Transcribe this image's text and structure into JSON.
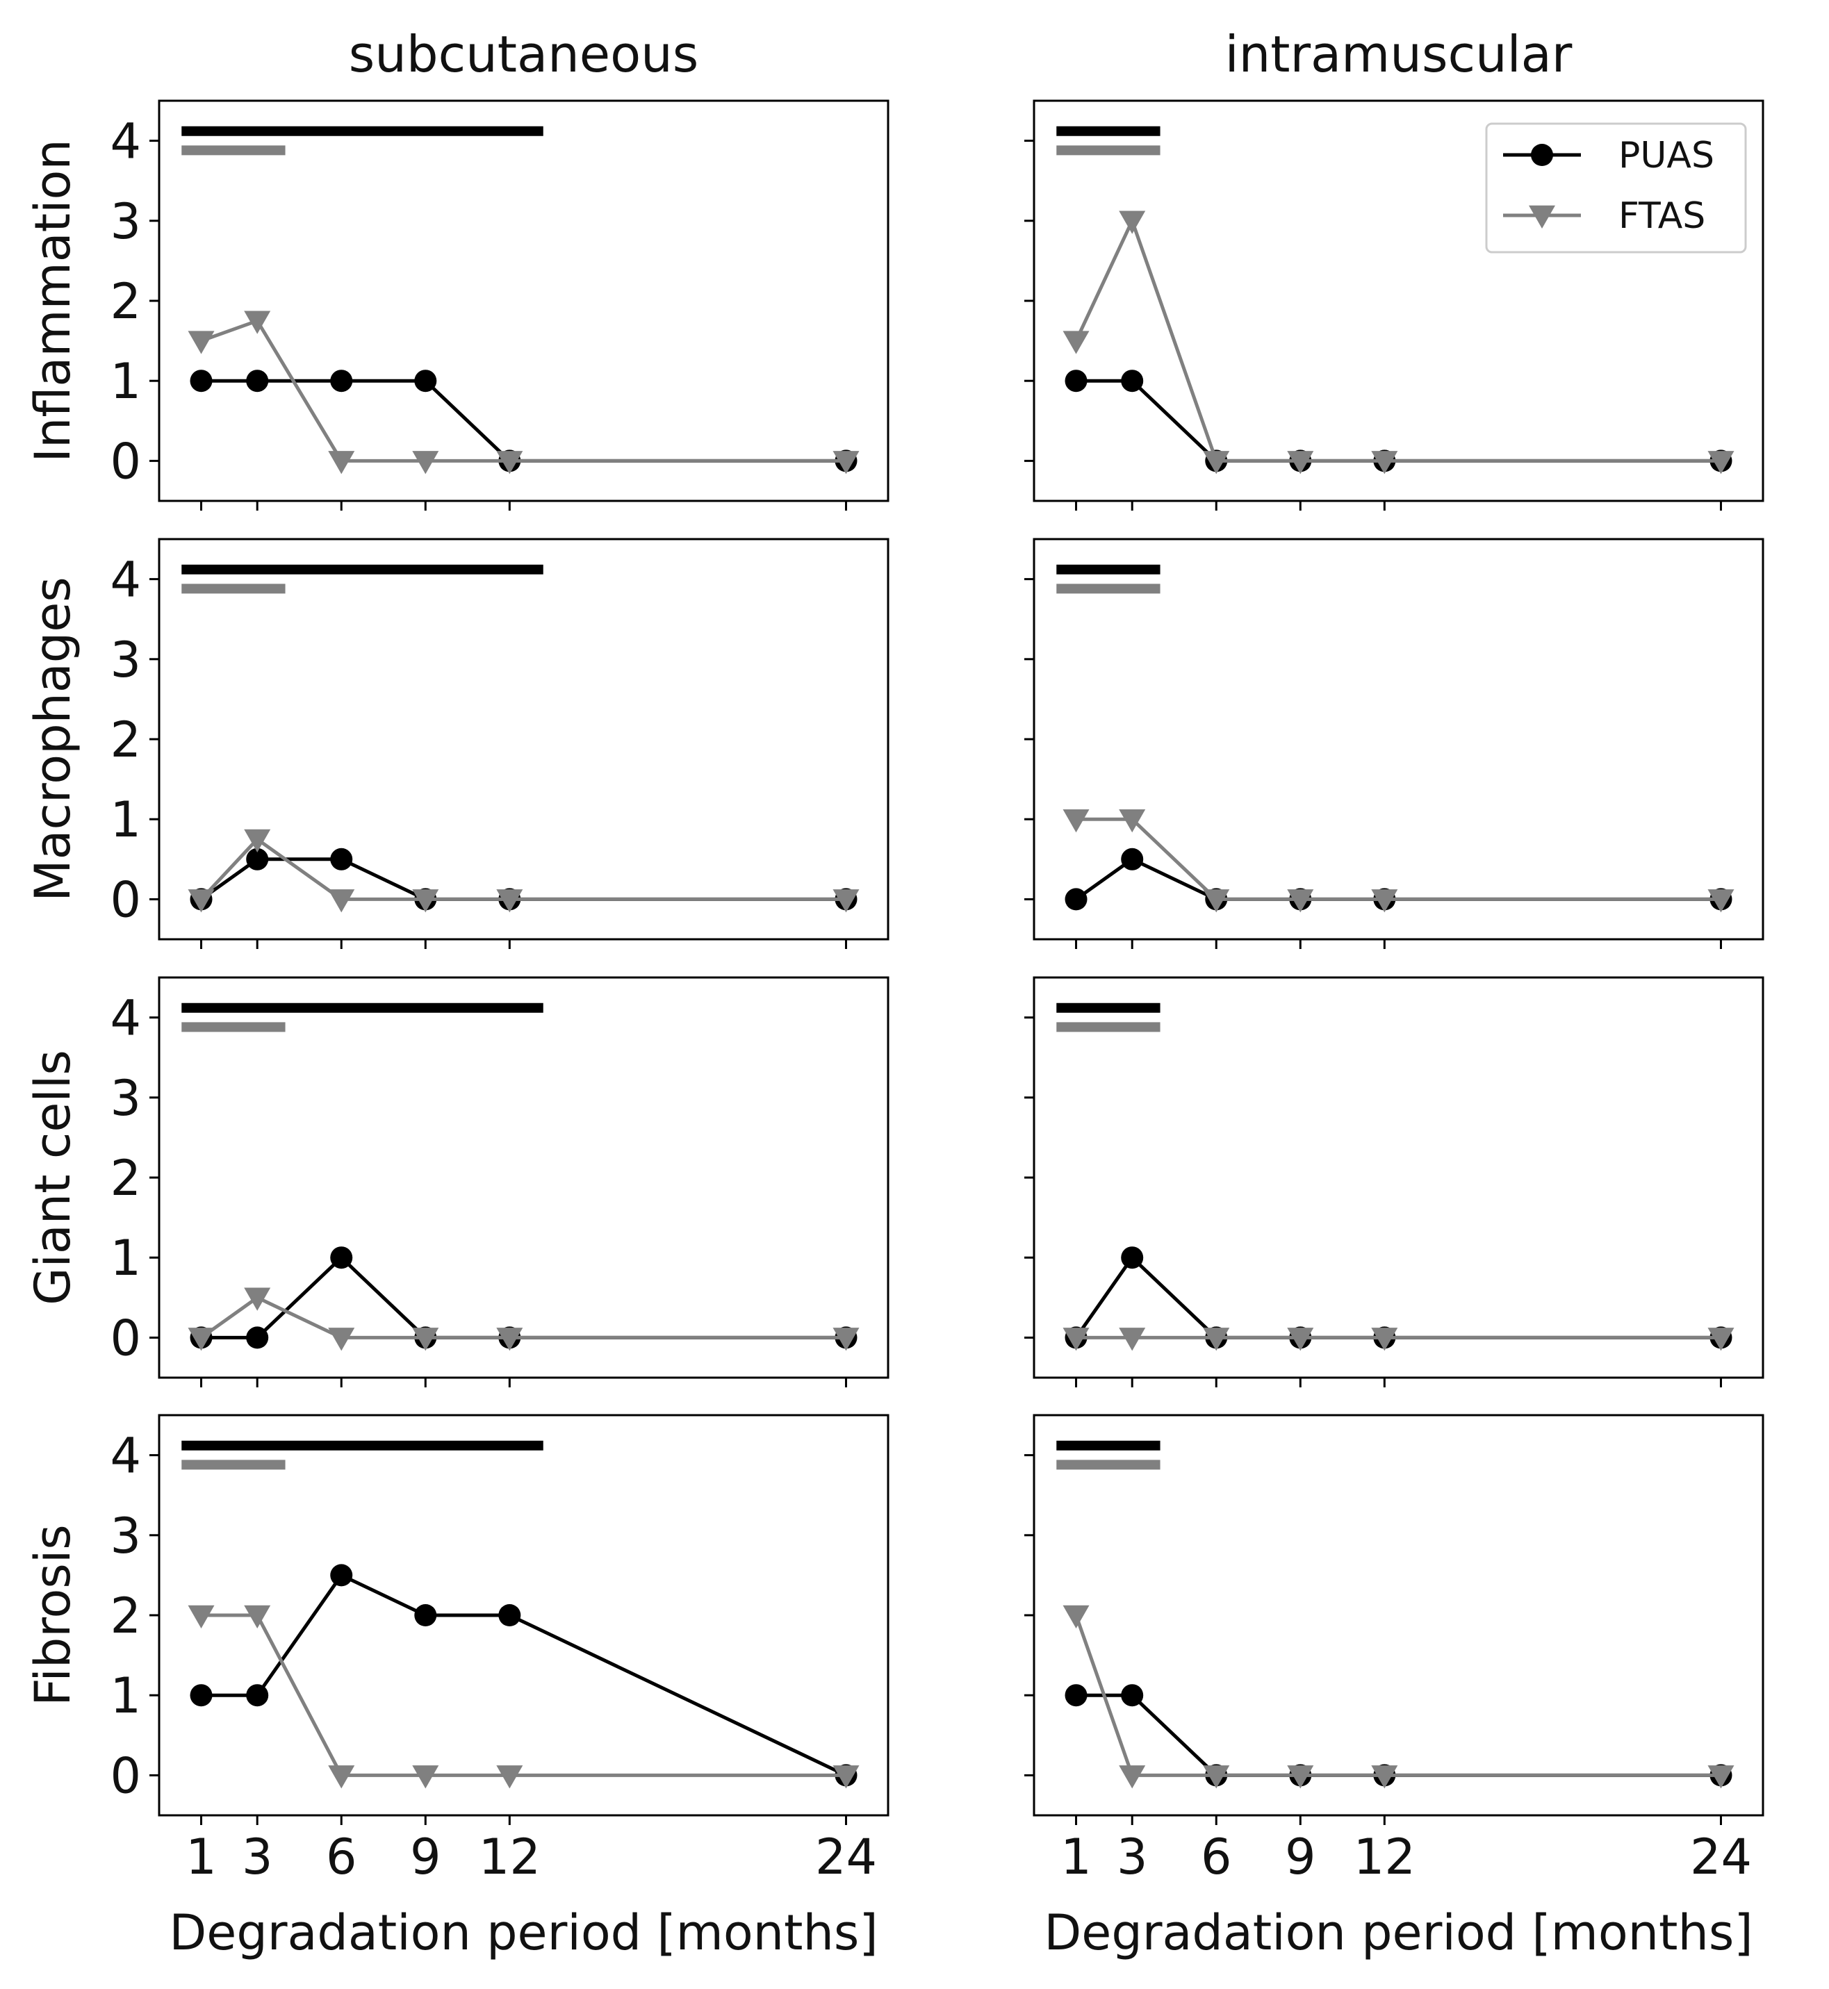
{
  "chart_data": {
    "type": "line",
    "x": [
      1,
      3,
      6,
      9,
      12,
      24
    ],
    "xticks": [
      "1",
      "3",
      "6",
      "9",
      "12",
      "24"
    ],
    "xlabel": "Degradation period [months]",
    "xlim": [
      -0.5,
      25.5
    ],
    "ylim": [
      -0.5,
      4.5
    ],
    "yticks": [
      "0",
      "1",
      "2",
      "3",
      "4"
    ],
    "columns": [
      "subcutaneous",
      "intramuscular"
    ],
    "rows": [
      "Inflammation",
      "Macrophages",
      "Giant cells",
      "Fibrosis"
    ],
    "legend": {
      "position": "top-right",
      "panel": "Inflammation / intramuscular",
      "entries": [
        {
          "name": "PUAS",
          "marker": "circle",
          "color": "#000000"
        },
        {
          "name": "FTAS",
          "marker": "triangle-down",
          "color": "#808080"
        }
      ]
    },
    "series_style": {
      "PUAS": {
        "color": "#000000"
      },
      "FTAS": {
        "color": "#808080"
      }
    },
    "bars": {
      "subcutaneous": {
        "PUAS": [
          0.3,
          13.2
        ],
        "FTAS": [
          0.3,
          4.0
        ],
        "PUAS_y": 4.12,
        "FTAS_y": 3.88
      },
      "intramuscular": {
        "PUAS": [
          0.3,
          4.0
        ],
        "FTAS": [
          0.3,
          4.0
        ],
        "PUAS_y": 4.12,
        "FTAS_y": 3.88
      }
    },
    "panels": [
      {
        "row": "Inflammation",
        "column": "subcutaneous",
        "series": [
          {
            "name": "PUAS",
            "values": [
              1,
              1,
              1,
              1,
              0,
              0
            ]
          },
          {
            "name": "FTAS",
            "values": [
              1.5,
              1.75,
              0,
              0,
              0,
              0
            ]
          }
        ]
      },
      {
        "row": "Inflammation",
        "column": "intramuscular",
        "series": [
          {
            "name": "PUAS",
            "values": [
              1,
              1,
              0,
              0,
              0,
              0
            ]
          },
          {
            "name": "FTAS",
            "values": [
              1.5,
              3,
              0,
              0,
              0,
              0
            ]
          }
        ]
      },
      {
        "row": "Macrophages",
        "column": "subcutaneous",
        "series": [
          {
            "name": "PUAS",
            "values": [
              0,
              0.5,
              0.5,
              0,
              0,
              0
            ]
          },
          {
            "name": "FTAS",
            "values": [
              0,
              0.75,
              0,
              0,
              0,
              0
            ]
          }
        ]
      },
      {
        "row": "Macrophages",
        "column": "intramuscular",
        "series": [
          {
            "name": "PUAS",
            "values": [
              0,
              0.5,
              0,
              0,
              0,
              0
            ]
          },
          {
            "name": "FTAS",
            "values": [
              1,
              1,
              0,
              0,
              0,
              0
            ]
          }
        ]
      },
      {
        "row": "Giant cells",
        "column": "subcutaneous",
        "series": [
          {
            "name": "PUAS",
            "values": [
              0,
              0,
              1,
              0,
              0,
              0
            ]
          },
          {
            "name": "FTAS",
            "values": [
              0,
              0.5,
              0,
              0,
              0,
              0
            ]
          }
        ]
      },
      {
        "row": "Giant cells",
        "column": "intramuscular",
        "series": [
          {
            "name": "PUAS",
            "values": [
              0,
              1,
              0,
              0,
              0,
              0
            ]
          },
          {
            "name": "FTAS",
            "values": [
              0,
              0,
              0,
              0,
              0,
              0
            ]
          }
        ]
      },
      {
        "row": "Fibrosis",
        "column": "subcutaneous",
        "series": [
          {
            "name": "PUAS",
            "values": [
              1,
              1,
              2.5,
              2,
              2,
              0
            ]
          },
          {
            "name": "FTAS",
            "values": [
              2,
              2,
              0,
              0,
              0,
              0
            ]
          }
        ]
      },
      {
        "row": "Fibrosis",
        "column": "intramuscular",
        "series": [
          {
            "name": "PUAS",
            "values": [
              1,
              1,
              0,
              0,
              0,
              0
            ]
          },
          {
            "name": "FTAS",
            "values": [
              2,
              0,
              0,
              0,
              0,
              0
            ]
          }
        ]
      }
    ]
  }
}
